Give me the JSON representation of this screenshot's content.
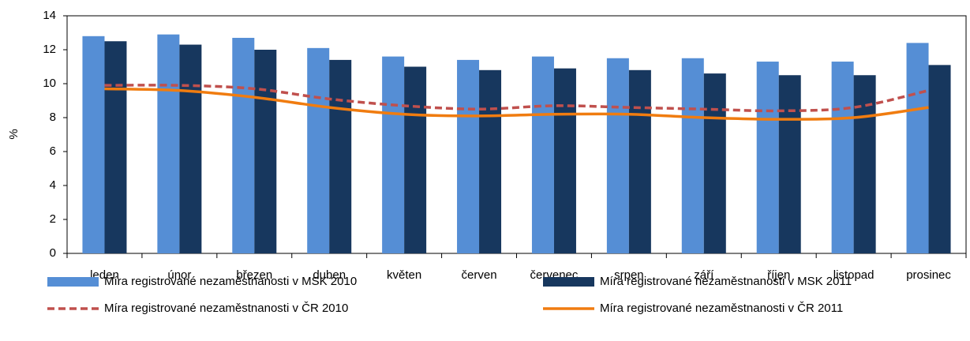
{
  "chart_data": {
    "type": "bar",
    "y_label": "%",
    "categories": [
      "leden",
      "únor",
      "březen",
      "duben",
      "květen",
      "červen",
      "červenec",
      "srpen",
      "září",
      "říjen",
      "listopad",
      "prosinec"
    ],
    "ylim": [
      0,
      14
    ],
    "yticks": [
      0,
      2,
      4,
      6,
      8,
      10,
      12,
      14
    ],
    "series": [
      {
        "name": "Míra registrované nezaměstnanosti v MSK 2010",
        "kind": "bar",
        "color": "#558ed5",
        "values": [
          12.8,
          12.9,
          12.7,
          12.1,
          11.6,
          11.4,
          11.6,
          11.5,
          11.5,
          11.3,
          11.3,
          12.4
        ]
      },
      {
        "name": "Míra registrované nezaměstnanosti v MSK 2011",
        "kind": "bar",
        "color": "#17375e",
        "values": [
          12.5,
          12.3,
          12.0,
          11.4,
          11.0,
          10.8,
          10.9,
          10.8,
          10.6,
          10.5,
          10.5,
          11.1
        ]
      },
      {
        "name": "Míra registrované nezaměstnanosti v ČR 2010",
        "kind": "line",
        "dashed": true,
        "color": "#c0504d",
        "values": [
          9.9,
          9.9,
          9.7,
          9.1,
          8.7,
          8.5,
          8.7,
          8.6,
          8.5,
          8.4,
          8.6,
          9.6
        ]
      },
      {
        "name": "Míra registrované nezaměstnanosti v ČR 2011",
        "kind": "line",
        "dashed": false,
        "color": "#f07c10",
        "values": [
          9.7,
          9.6,
          9.2,
          8.6,
          8.2,
          8.1,
          8.2,
          8.2,
          8.0,
          7.9,
          8.0,
          8.6
        ]
      }
    ]
  }
}
